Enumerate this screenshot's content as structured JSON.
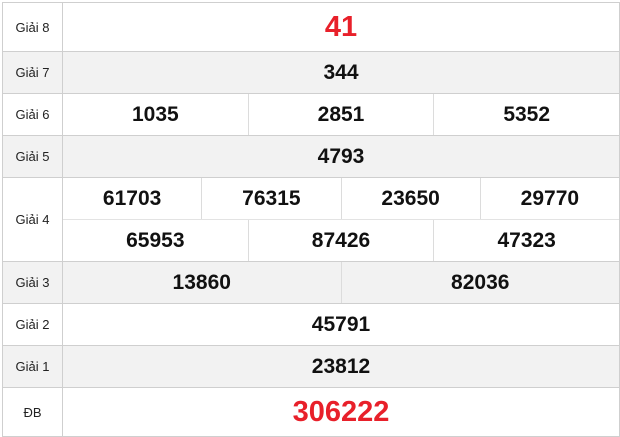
{
  "accent_color": "#e8202a",
  "prizes": [
    {
      "label": "Giải 8",
      "rows": [
        [
          "41"
        ]
      ]
    },
    {
      "label": "Giải 7",
      "rows": [
        [
          "344"
        ]
      ]
    },
    {
      "label": "Giải 6",
      "rows": [
        [
          "1035",
          "2851",
          "5352"
        ]
      ]
    },
    {
      "label": "Giải 5",
      "rows": [
        [
          "4793"
        ]
      ]
    },
    {
      "label": "Giải 4",
      "rows": [
        [
          "61703",
          "76315",
          "23650",
          "29770"
        ],
        [
          "65953",
          "87426",
          "47323"
        ]
      ]
    },
    {
      "label": "Giải 3",
      "rows": [
        [
          "13860",
          "82036"
        ]
      ]
    },
    {
      "label": "Giải 2",
      "rows": [
        [
          "45791"
        ]
      ]
    },
    {
      "label": "Giải 1",
      "rows": [
        [
          "23812"
        ]
      ]
    },
    {
      "label": "ĐB",
      "rows": [
        [
          "306222"
        ]
      ]
    }
  ]
}
